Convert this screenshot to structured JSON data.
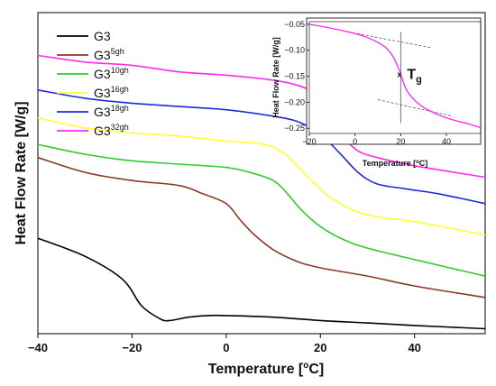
{
  "chart_data": [
    {
      "type": "line",
      "xlabel_main": "Temperature [",
      "xlabel_deg": "o",
      "xlabel_unit": "C]",
      "ylabel": "Heat Flow Rate [W/g]",
      "xlim": [
        -40,
        55
      ],
      "x_ticks": [
        "-40",
        "-20",
        "0",
        "20",
        "40"
      ],
      "y_ticks_shown": false,
      "legend_position": "top-left",
      "series": [
        {
          "name": "G3",
          "base": "G3",
          "sup": "",
          "color": "#000000",
          "points": [
            [
              -40,
              0.53
            ],
            [
              -30,
              0.42
            ],
            [
              -22,
              0.28
            ],
            [
              -18,
              0.12
            ],
            [
              -14,
              0.04
            ],
            [
              -12,
              0.03
            ],
            [
              -8,
              0.05
            ],
            [
              -4,
              0.06
            ],
            [
              0,
              0.06
            ],
            [
              10,
              0.05
            ],
            [
              20,
              0.03
            ],
            [
              30,
              0.015
            ],
            [
              40,
              0.0
            ],
            [
              55,
              -0.02
            ]
          ]
        },
        {
          "name": "G35gh",
          "base": "G3",
          "sup": "5gh",
          "color": "#8b3a2a",
          "points": [
            [
              -40,
              1.02
            ],
            [
              -30,
              0.93
            ],
            [
              -20,
              0.88
            ],
            [
              -10,
              0.85
            ],
            [
              -5,
              0.8
            ],
            [
              0,
              0.74
            ],
            [
              3,
              0.64
            ],
            [
              6,
              0.55
            ],
            [
              10,
              0.46
            ],
            [
              15,
              0.39
            ],
            [
              20,
              0.35
            ],
            [
              30,
              0.3
            ],
            [
              40,
              0.24
            ],
            [
              55,
              0.17
            ]
          ]
        },
        {
          "name": "G310gh",
          "base": "G3",
          "sup": "10gh",
          "color": "#2ecc2e",
          "points": [
            [
              -40,
              1.1
            ],
            [
              -30,
              1.04
            ],
            [
              -20,
              1.0
            ],
            [
              -10,
              0.98
            ],
            [
              0,
              0.96
            ],
            [
              5,
              0.93
            ],
            [
              10,
              0.88
            ],
            [
              13,
              0.8
            ],
            [
              16,
              0.7
            ],
            [
              20,
              0.6
            ],
            [
              25,
              0.52
            ],
            [
              30,
              0.47
            ],
            [
              40,
              0.4
            ],
            [
              55,
              0.3
            ]
          ]
        },
        {
          "name": "G316gh",
          "base": "G3",
          "sup": "16gh",
          "color": "#ffff33",
          "points": [
            [
              -40,
              1.26
            ],
            [
              -30,
              1.2
            ],
            [
              -20,
              1.17
            ],
            [
              -10,
              1.15
            ],
            [
              0,
              1.12
            ],
            [
              8,
              1.1
            ],
            [
              12,
              1.05
            ],
            [
              15,
              0.97
            ],
            [
              18,
              0.88
            ],
            [
              22,
              0.78
            ],
            [
              27,
              0.7
            ],
            [
              32,
              0.66
            ],
            [
              40,
              0.63
            ],
            [
              55,
              0.55
            ]
          ]
        },
        {
          "name": "G318gh",
          "base": "G3",
          "sup": "18gh",
          "color": "#1f2ad6",
          "points": [
            [
              -40,
              1.43
            ],
            [
              -30,
              1.38
            ],
            [
              -20,
              1.35
            ],
            [
              -10,
              1.33
            ],
            [
              0,
              1.31
            ],
            [
              8,
              1.28
            ],
            [
              15,
              1.24
            ],
            [
              20,
              1.16
            ],
            [
              24,
              1.05
            ],
            [
              28,
              0.93
            ],
            [
              32,
              0.86
            ],
            [
              38,
              0.83
            ],
            [
              45,
              0.8
            ],
            [
              55,
              0.74
            ]
          ]
        },
        {
          "name": "G332gh",
          "base": "G3",
          "sup": "32gh",
          "color": "#ff2aee",
          "points": [
            [
              -40,
              1.64
            ],
            [
              -30,
              1.6
            ],
            [
              -20,
              1.58
            ],
            [
              -10,
              1.54
            ],
            [
              0,
              1.52
            ],
            [
              10,
              1.49
            ],
            [
              15,
              1.46
            ],
            [
              18,
              1.42
            ],
            [
              20,
              1.34
            ],
            [
              22,
              1.25
            ],
            [
              25,
              1.14
            ],
            [
              28,
              1.06
            ],
            [
              32,
              1.02
            ],
            [
              40,
              0.97
            ],
            [
              55,
              0.9
            ]
          ]
        }
      ]
    },
    {
      "type": "line",
      "title": "inset",
      "xlabel_main": "Temperature [",
      "xlabel_deg": "o",
      "xlabel_unit": "C]",
      "ylabel": "Heat Flow Rate [W/g]",
      "xlim": [
        -20,
        55
      ],
      "ylim": [
        -0.26,
        -0.045
      ],
      "x_ticks": [
        "-20",
        "0",
        "20",
        "40"
      ],
      "y_ticks": [
        "-0.05",
        "-0.10",
        "-0.15",
        "-0.20",
        "-0.25"
      ],
      "tg_base": "T",
      "tg_sub": "g",
      "tg_x": 20,
      "series": [
        {
          "name": "G332gh",
          "color": "#ff2aee",
          "points": [
            [
              -20,
              -0.05
            ],
            [
              -10,
              -0.058
            ],
            [
              0,
              -0.068
            ],
            [
              5,
              -0.075
            ],
            [
              10,
              -0.085
            ],
            [
              14,
              -0.097
            ],
            [
              17,
              -0.115
            ],
            [
              19,
              -0.135
            ],
            [
              20,
              -0.145
            ],
            [
              21,
              -0.16
            ],
            [
              23,
              -0.18
            ],
            [
              27,
              -0.2
            ],
            [
              32,
              -0.215
            ],
            [
              40,
              -0.23
            ],
            [
              50,
              -0.242
            ],
            [
              55,
              -0.249
            ]
          ]
        }
      ]
    }
  ]
}
